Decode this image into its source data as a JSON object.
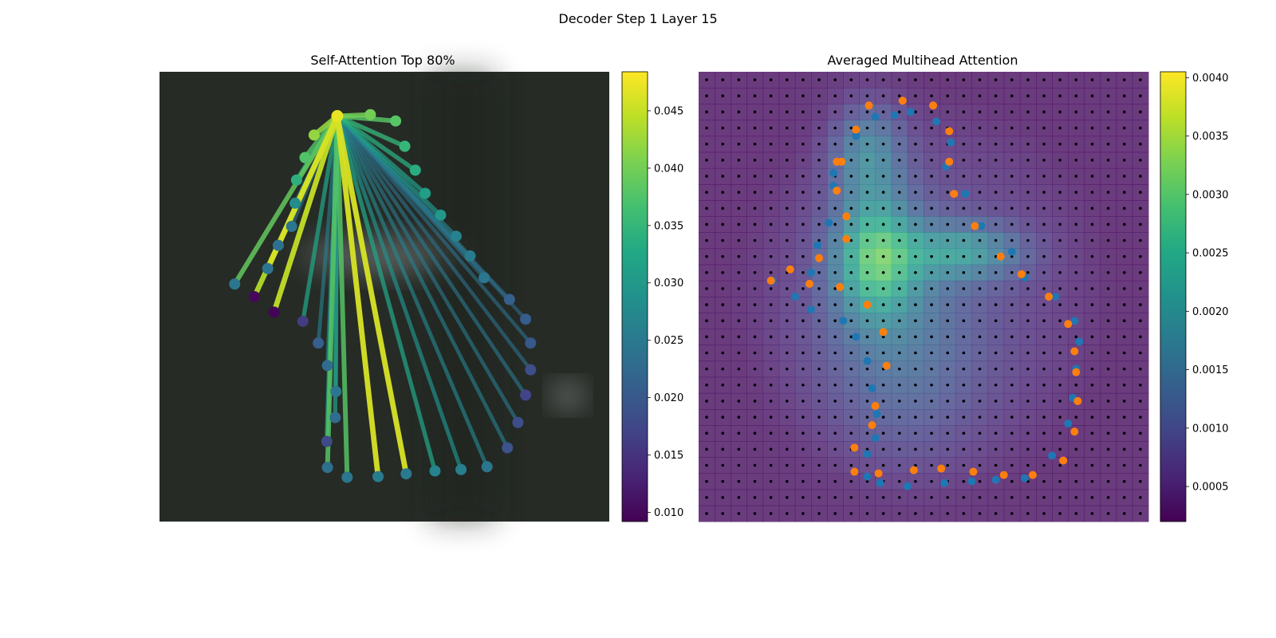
{
  "figure": {
    "suptitle": "Decoder Step 1 Layer 15"
  },
  "chart_data": [
    {
      "type": "scatter",
      "title": "Self-Attention Top 80%",
      "description": "Keypoint graph: edges from the query keypoint to other keypoints, colored by attention weight (viridis).",
      "colormap": "viridis",
      "colorbar": {
        "min": 0.0092,
        "max": 0.0484,
        "ticks": [
          0.01,
          0.015,
          0.02,
          0.025,
          0.03,
          0.035,
          0.04,
          0.045
        ],
        "tick_labels": [
          "0.010",
          "0.015",
          "0.020",
          "0.025",
          "0.030",
          "0.035",
          "0.040",
          "0.045"
        ]
      },
      "xlim": [
        0,
        64
      ],
      "ylim": [
        64,
        0
      ],
      "axes_visible": false,
      "source": {
        "x": 25.3,
        "y": 6.3,
        "value": 0.047
      },
      "points": [
        {
          "x": 25.3,
          "y": 6.3,
          "value": 0.047
        },
        {
          "x": 30.0,
          "y": 6.1,
          "value": 0.04
        },
        {
          "x": 33.6,
          "y": 7.0,
          "value": 0.038
        },
        {
          "x": 22.0,
          "y": 9.0,
          "value": 0.042
        },
        {
          "x": 34.9,
          "y": 10.6,
          "value": 0.035
        },
        {
          "x": 20.7,
          "y": 12.2,
          "value": 0.0375
        },
        {
          "x": 36.4,
          "y": 14.0,
          "value": 0.0335
        },
        {
          "x": 19.5,
          "y": 15.4,
          "value": 0.034
        },
        {
          "x": 37.8,
          "y": 17.3,
          "value": 0.031
        },
        {
          "x": 19.3,
          "y": 18.7,
          "value": 0.028
        },
        {
          "x": 40.0,
          "y": 20.4,
          "value": 0.03
        },
        {
          "x": 18.8,
          "y": 22.0,
          "value": 0.0245
        },
        {
          "x": 42.2,
          "y": 23.4,
          "value": 0.0265
        },
        {
          "x": 16.9,
          "y": 24.7,
          "value": 0.024
        },
        {
          "x": 44.2,
          "y": 26.2,
          "value": 0.0255
        },
        {
          "x": 15.4,
          "y": 28.0,
          "value": 0.0245
        },
        {
          "x": 46.2,
          "y": 29.3,
          "value": 0.0245
        },
        {
          "x": 10.7,
          "y": 30.2,
          "value": 0.0245
        },
        {
          "x": 49.8,
          "y": 32.4,
          "value": 0.021
        },
        {
          "x": 13.5,
          "y": 32.0,
          "value": 0.01
        },
        {
          "x": 16.3,
          "y": 34.2,
          "value": 0.0095
        },
        {
          "x": 52.1,
          "y": 35.2,
          "value": 0.0205
        },
        {
          "x": 20.4,
          "y": 35.5,
          "value": 0.016
        },
        {
          "x": 52.8,
          "y": 38.6,
          "value": 0.02
        },
        {
          "x": 22.6,
          "y": 38.6,
          "value": 0.021
        },
        {
          "x": 52.8,
          "y": 42.4,
          "value": 0.0185
        },
        {
          "x": 23.9,
          "y": 41.8,
          "value": 0.023
        },
        {
          "x": 52.1,
          "y": 46.0,
          "value": 0.017
        },
        {
          "x": 25.1,
          "y": 45.5,
          "value": 0.0245
        },
        {
          "x": 25.0,
          "y": 49.2,
          "value": 0.023
        },
        {
          "x": 51.0,
          "y": 49.9,
          "value": 0.0185
        },
        {
          "x": 23.8,
          "y": 52.6,
          "value": 0.018
        },
        {
          "x": 49.5,
          "y": 53.5,
          "value": 0.019
        },
        {
          "x": 23.9,
          "y": 56.3,
          "value": 0.0235
        },
        {
          "x": 26.7,
          "y": 57.7,
          "value": 0.0245
        },
        {
          "x": 31.1,
          "y": 57.6,
          "value": 0.0255
        },
        {
          "x": 35.1,
          "y": 57.2,
          "value": 0.025
        },
        {
          "x": 39.2,
          "y": 56.8,
          "value": 0.0265
        },
        {
          "x": 42.9,
          "y": 56.6,
          "value": 0.026
        },
        {
          "x": 46.6,
          "y": 56.2,
          "value": 0.0245
        }
      ],
      "edges": [
        {
          "to": 1,
          "value": 0.04
        },
        {
          "to": 2,
          "value": 0.038
        },
        {
          "to": 3,
          "value": 0.042
        },
        {
          "to": 4,
          "value": 0.035
        },
        {
          "to": 5,
          "value": 0.0375
        },
        {
          "to": 6,
          "value": 0.0335
        },
        {
          "to": 7,
          "value": 0.034
        },
        {
          "to": 8,
          "value": 0.031
        },
        {
          "to": 9,
          "value": 0.028
        },
        {
          "to": 10,
          "value": 0.03
        },
        {
          "to": 11,
          "value": 0.0245
        },
        {
          "to": 12,
          "value": 0.0265
        },
        {
          "to": 13,
          "value": 0.037
        },
        {
          "to": 14,
          "value": 0.0255
        },
        {
          "to": 15,
          "value": 0.046
        },
        {
          "to": 16,
          "value": 0.0245
        },
        {
          "to": 17,
          "value": 0.039
        },
        {
          "to": 18,
          "value": 0.024
        },
        {
          "to": 19,
          "value": 0.044
        },
        {
          "to": 20,
          "value": 0.045
        },
        {
          "to": 21,
          "value": 0.023
        },
        {
          "to": 22,
          "value": 0.032
        },
        {
          "to": 23,
          "value": 0.024
        },
        {
          "to": 24,
          "value": 0.026
        },
        {
          "to": 25,
          "value": 0.024
        },
        {
          "to": 26,
          "value": 0.027
        },
        {
          "to": 27,
          "value": 0.025
        },
        {
          "to": 28,
          "value": 0.03
        },
        {
          "to": 29,
          "value": 0.031
        },
        {
          "to": 30,
          "value": 0.025
        },
        {
          "to": 31,
          "value": 0.033
        },
        {
          "to": 32,
          "value": 0.026
        },
        {
          "to": 33,
          "value": 0.038
        },
        {
          "to": 34,
          "value": 0.038
        },
        {
          "to": 35,
          "value": 0.046
        },
        {
          "to": 36,
          "value": 0.046
        },
        {
          "to": 37,
          "value": 0.032
        },
        {
          "to": 38,
          "value": 0.029
        },
        {
          "to": 39,
          "value": 0.027
        }
      ]
    },
    {
      "type": "heatmap",
      "title": "Averaged Multihead Attention",
      "colormap": "viridis",
      "colorbar": {
        "min": 0.0002,
        "max": 0.00405,
        "ticks": [
          0.0005,
          0.001,
          0.0015,
          0.002,
          0.0025,
          0.003,
          0.0035,
          0.004
        ],
        "tick_labels": [
          "0.0005",
          "0.0010",
          "0.0015",
          "0.0020",
          "0.0025",
          "0.0030",
          "0.0035",
          "0.0040"
        ]
      },
      "grid_size": [
        28,
        28
      ],
      "xlim": [
        0,
        28
      ],
      "ylim": [
        28,
        0
      ],
      "axes_visible": false,
      "grid_points": {
        "color": "#000000",
        "marker": "dot"
      },
      "hotspots": [
        {
          "x": 11.0,
          "y": 11.5,
          "sx": 1.8,
          "sy": 2.6,
          "value": 0.002
        },
        {
          "x": 16.5,
          "y": 11.2,
          "sx": 2.6,
          "sy": 1.2,
          "value": 0.0013
        },
        {
          "x": 10.5,
          "y": 5.0,
          "sx": 1.6,
          "sy": 2.2,
          "value": 0.0012
        },
        {
          "x": 12.5,
          "y": 17.0,
          "sx": 3.5,
          "sy": 5.0,
          "value": 0.0007
        }
      ],
      "blue_points": [
        [
          4.6,
          13.0
        ],
        [
          6.0,
          14.0
        ],
        [
          7.0,
          12.5
        ],
        [
          7.0,
          14.8
        ],
        [
          7.4,
          10.8
        ],
        [
          8.1,
          9.4
        ],
        [
          8.4,
          7.1
        ],
        [
          8.4,
          6.3
        ],
        [
          9.0,
          15.5
        ],
        [
          9.8,
          4.0
        ],
        [
          11.0,
          2.8
        ],
        [
          12.2,
          2.7
        ],
        [
          9.8,
          16.5
        ],
        [
          10.5,
          18.0
        ],
        [
          10.8,
          19.7
        ],
        [
          11.1,
          21.3
        ],
        [
          11.0,
          22.8
        ],
        [
          10.5,
          23.8
        ],
        [
          10.5,
          25.2
        ],
        [
          11.3,
          25.6
        ],
        [
          13.0,
          25.8
        ],
        [
          15.3,
          25.6
        ],
        [
          17.0,
          25.5
        ],
        [
          18.5,
          25.4
        ],
        [
          20.3,
          25.3
        ],
        [
          22.0,
          23.9
        ],
        [
          23.0,
          21.9
        ],
        [
          23.3,
          20.3
        ],
        [
          23.5,
          18.5
        ],
        [
          23.7,
          16.8
        ],
        [
          23.4,
          15.5
        ],
        [
          22.2,
          14.0
        ],
        [
          20.3,
          12.8
        ],
        [
          19.5,
          11.2
        ],
        [
          17.6,
          9.6
        ],
        [
          16.6,
          7.6
        ],
        [
          15.7,
          4.4
        ],
        [
          15.4,
          5.9
        ],
        [
          14.8,
          3.1
        ],
        [
          13.2,
          2.5
        ]
      ],
      "orange_points": [
        [
          4.5,
          13.0
        ],
        [
          5.7,
          12.3
        ],
        [
          6.9,
          13.2
        ],
        [
          7.5,
          11.6
        ],
        [
          8.6,
          5.6
        ],
        [
          8.6,
          7.4
        ],
        [
          9.2,
          10.4
        ],
        [
          9.2,
          9.0
        ],
        [
          8.8,
          13.4
        ],
        [
          10.5,
          14.5
        ],
        [
          11.5,
          16.2
        ],
        [
          11.0,
          20.8
        ],
        [
          11.7,
          18.3
        ],
        [
          10.8,
          22.0
        ],
        [
          9.7,
          23.4
        ],
        [
          9.7,
          24.9
        ],
        [
          11.2,
          25.0
        ],
        [
          13.4,
          24.8
        ],
        [
          15.1,
          24.7
        ],
        [
          17.1,
          24.9
        ],
        [
          19.0,
          25.1
        ],
        [
          20.8,
          25.1
        ],
        [
          22.7,
          24.2
        ],
        [
          23.4,
          22.4
        ],
        [
          23.6,
          20.5
        ],
        [
          23.5,
          18.7
        ],
        [
          23.4,
          17.4
        ],
        [
          23.0,
          15.7
        ],
        [
          21.8,
          14.0
        ],
        [
          20.1,
          12.6
        ],
        [
          18.8,
          11.5
        ],
        [
          17.2,
          9.6
        ],
        [
          15.9,
          7.6
        ],
        [
          15.6,
          5.6
        ],
        [
          15.6,
          3.7
        ],
        [
          14.6,
          2.1
        ],
        [
          12.7,
          1.8
        ],
        [
          10.6,
          2.1
        ],
        [
          9.8,
          3.6
        ],
        [
          8.9,
          5.6
        ]
      ]
    }
  ]
}
